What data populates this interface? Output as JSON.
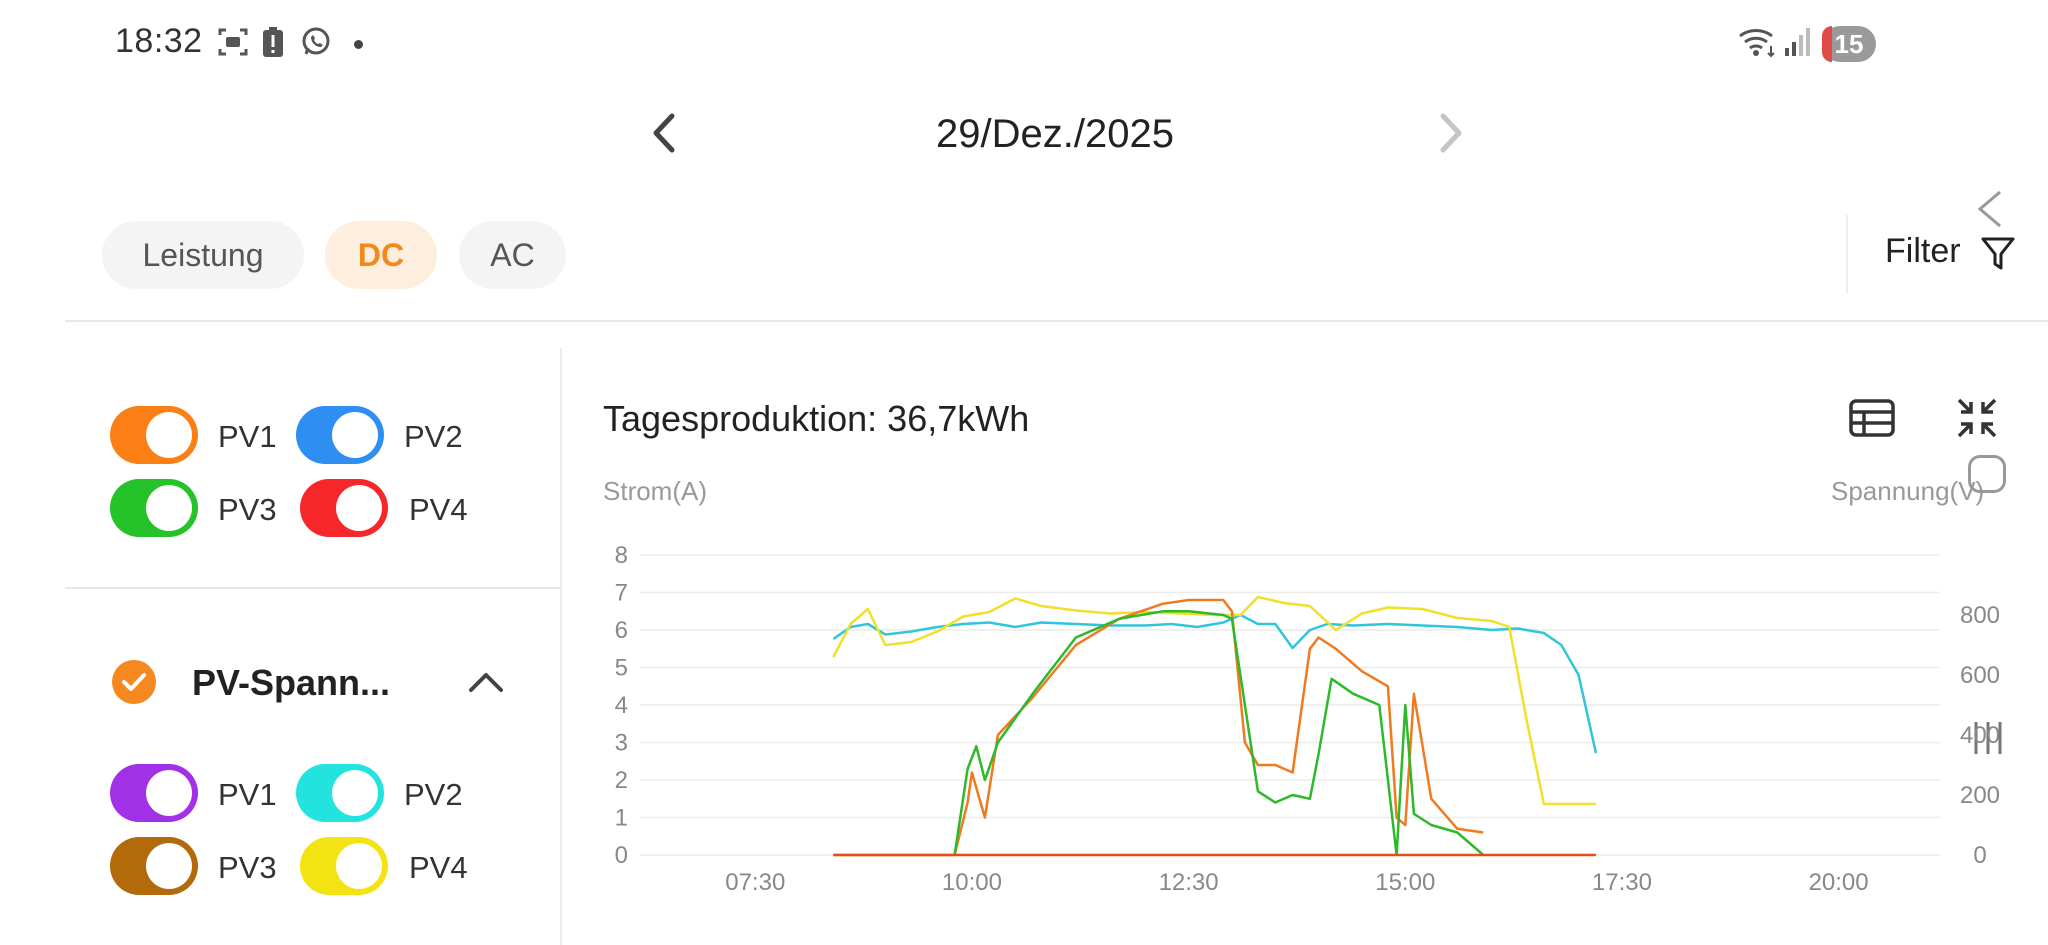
{
  "status_bar": {
    "time": "18:32",
    "icons": [
      "screenshot-icon",
      "battery-alert-icon",
      "whatsapp-icon",
      "notification-dot-icon",
      "wifi-icon",
      "signal-icon"
    ],
    "badge": "15"
  },
  "date_nav": {
    "date": "29/Dez./2025"
  },
  "tabs": [
    {
      "label": "Leistung",
      "active": false
    },
    {
      "label": "DC",
      "active": true
    },
    {
      "label": "AC",
      "active": false
    }
  ],
  "filter": {
    "label": "Filter"
  },
  "current_toggles": [
    {
      "label": "PV1",
      "color": "#fb7f14",
      "on": true
    },
    {
      "label": "PV2",
      "color": "#2e8ef2",
      "on": true
    },
    {
      "label": "PV3",
      "color": "#26c229",
      "on": true
    },
    {
      "label": "PV4",
      "color": "#f5272a",
      "on": true
    }
  ],
  "voltage_section": {
    "title": "PV-Spann...",
    "toggles": [
      {
        "label": "PV1",
        "color": "#a230e6",
        "on": true
      },
      {
        "label": "PV2",
        "color": "#23e3de",
        "on": true
      },
      {
        "label": "PV3",
        "color": "#b36a0a",
        "on": true
      },
      {
        "label": "PV4",
        "color": "#f4e312",
        "on": true
      }
    ]
  },
  "chart": {
    "title": "Tagesproduktion: 36,7kWh",
    "left_axis_label": "Strom(A)",
    "right_axis_label": "Spannung(V)"
  },
  "chart_data": {
    "type": "line",
    "x_ticks": [
      "07:30",
      "10:00",
      "12:30",
      "15:00",
      "17:30",
      "20:00"
    ],
    "x_range_hours": [
      6.17,
      21.17
    ],
    "ylim_left": [
      0,
      8
    ],
    "ylim_right": [
      0,
      1000
    ],
    "y_ticks_left": [
      0,
      1,
      2,
      3,
      4,
      5,
      6,
      7,
      8
    ],
    "y_ticks_right": [
      0,
      200,
      400,
      600,
      800
    ],
    "grid": true,
    "series": [
      {
        "color": "#2fc5dc",
        "axis": "right",
        "x": [
          8.4,
          8.6,
          8.8,
          9.0,
          9.3,
          9.6,
          9.9,
          10.2,
          10.5,
          10.8,
          11.2,
          11.6,
          12.0,
          12.3,
          12.6,
          12.9,
          13.1,
          13.3,
          13.5,
          13.7,
          13.9,
          14.1,
          14.4,
          14.8,
          15.2,
          15.6,
          16.0,
          16.3,
          16.6,
          16.8,
          17.0,
          17.2
        ],
        "y": [
          720,
          760,
          770,
          735,
          745,
          760,
          770,
          775,
          760,
          775,
          770,
          765,
          765,
          770,
          760,
          775,
          800,
          770,
          770,
          690,
          750,
          770,
          765,
          770,
          765,
          760,
          750,
          755,
          740,
          700,
          600,
          340
        ]
      },
      {
        "color": "#f0e02a",
        "axis": "right",
        "x": [
          8.4,
          8.6,
          8.8,
          9.0,
          9.3,
          9.6,
          9.9,
          10.2,
          10.5,
          10.8,
          11.2,
          11.6,
          12.0,
          12.4,
          12.8,
          13.1,
          13.3,
          13.6,
          13.9,
          14.2,
          14.5,
          14.8,
          15.2,
          15.6,
          16.0,
          16.2,
          16.4,
          16.6,
          17.2
        ],
        "y": [
          660,
          770,
          820,
          700,
          710,
          745,
          795,
          810,
          855,
          830,
          815,
          805,
          810,
          805,
          800,
          800,
          860,
          840,
          830,
          750,
          805,
          825,
          820,
          790,
          780,
          760,
          450,
          170,
          170
        ]
      },
      {
        "color": "#f07a1f",
        "axis": "left",
        "x": [
          8.4,
          9.8,
          9.95,
          10.0,
          10.15,
          10.3,
          10.7,
          11.2,
          11.7,
          12.2,
          12.5,
          12.9,
          13.0,
          13.15,
          13.3,
          13.5,
          13.7,
          13.9,
          14.0,
          14.2,
          14.5,
          14.8,
          14.9,
          15.0,
          15.1,
          15.3,
          15.6,
          15.9
        ],
        "y": [
          0,
          0,
          1.4,
          2.2,
          1.0,
          3.2,
          4.2,
          5.6,
          6.3,
          6.7,
          6.8,
          6.8,
          6.5,
          3.0,
          2.4,
          2.4,
          2.2,
          5.5,
          5.8,
          5.5,
          4.9,
          4.5,
          1.0,
          0.8,
          4.3,
          1.5,
          0.7,
          0.6
        ]
      },
      {
        "color": "#2cba2a",
        "axis": "left",
        "x": [
          9.8,
          9.95,
          10.05,
          10.15,
          10.3,
          10.7,
          11.2,
          11.7,
          12.2,
          12.5,
          12.9,
          13.0,
          13.15,
          13.3,
          13.5,
          13.7,
          13.9,
          14.0,
          14.15,
          14.4,
          14.7,
          14.9,
          15.0,
          15.1,
          15.3,
          15.6,
          15.9
        ],
        "y": [
          0,
          2.3,
          2.9,
          2.0,
          3.0,
          4.3,
          5.8,
          6.3,
          6.5,
          6.5,
          6.4,
          6.3,
          4.0,
          1.7,
          1.4,
          1.6,
          1.5,
          2.7,
          4.7,
          4.3,
          4.0,
          0.0,
          4.0,
          1.1,
          0.8,
          0.6,
          0.0
        ]
      },
      {
        "color": "#e0501e",
        "axis": "left",
        "x": [
          8.4,
          17.2
        ],
        "y": [
          0,
          0
        ]
      }
    ]
  }
}
